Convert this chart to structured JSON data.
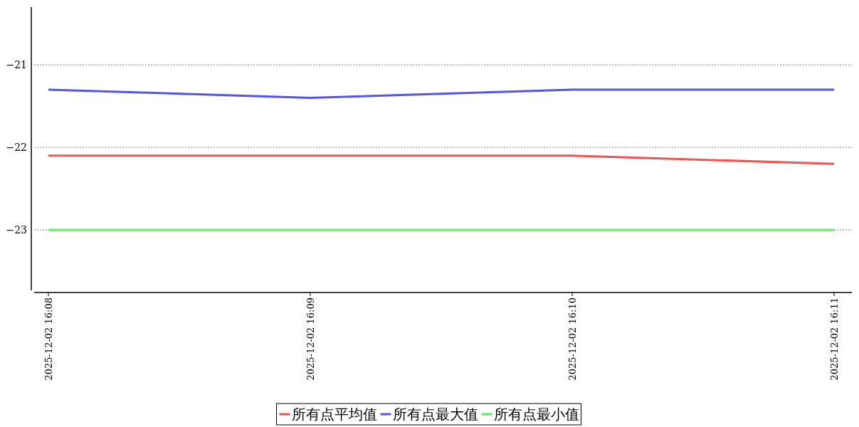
{
  "chart_data": {
    "type": "line",
    "categories": [
      "2025-12-02 16:08",
      "2025-12-02 16:09",
      "2025-12-02 16:10",
      "2025-12-02 16:11"
    ],
    "series": [
      {
        "name": "所有点平均值",
        "color": "#f05454",
        "values": [
          -22.1,
          -22.1,
          -22.1,
          -22.2
        ]
      },
      {
        "name": "所有点最大值",
        "color": "#5454e6",
        "values": [
          -21.3,
          -21.4,
          -21.3,
          -21.3
        ]
      },
      {
        "name": "所有点最小值",
        "color": "#5cf05c",
        "values": [
          -23,
          -23,
          -23,
          -23
        ]
      }
    ],
    "ylim": [
      -23.75,
      -20.3
    ],
    "yticks": [
      {
        "value": -21,
        "label": "−21"
      },
      {
        "value": -22,
        "label": "−22"
      },
      {
        "value": -23,
        "label": "−23"
      }
    ],
    "grid": "y",
    "legend": "bottom",
    "marker": "none",
    "line_style": "solid"
  }
}
